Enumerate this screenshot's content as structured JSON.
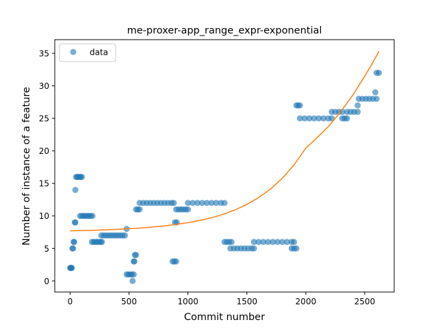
{
  "chart_data": {
    "type": "scatter",
    "title": "me-proxer-app_range_expr-exponential",
    "xlabel": "Commit number",
    "ylabel": "Number of instance of a feature",
    "xlim": [
      -130,
      2750
    ],
    "ylim": [
      -1.7,
      37.1
    ],
    "xticks": [
      0,
      500,
      1000,
      1500,
      2000,
      2500
    ],
    "yticks": [
      0,
      5,
      10,
      15,
      20,
      25,
      30,
      35
    ],
    "grid": false,
    "legend": {
      "placement": "upper-left",
      "entries": [
        "data"
      ]
    },
    "colors": {
      "data": "#1f77b4",
      "fit": "#ff7f0e"
    },
    "series": [
      {
        "name": "data",
        "kind": "scatter",
        "points": [
          [
            0,
            2
          ],
          [
            5,
            2
          ],
          [
            10,
            2
          ],
          [
            15,
            2
          ],
          [
            20,
            5
          ],
          [
            25,
            5
          ],
          [
            30,
            6
          ],
          [
            35,
            6
          ],
          [
            40,
            9
          ],
          [
            45,
            9
          ],
          [
            45,
            14
          ],
          [
            50,
            16
          ],
          [
            60,
            16
          ],
          [
            70,
            16
          ],
          [
            80,
            16
          ],
          [
            90,
            16
          ],
          [
            100,
            16
          ],
          [
            85,
            10
          ],
          [
            100,
            10
          ],
          [
            115,
            10
          ],
          [
            130,
            10
          ],
          [
            145,
            10
          ],
          [
            160,
            10
          ],
          [
            175,
            10
          ],
          [
            190,
            10
          ],
          [
            185,
            6
          ],
          [
            200,
            6
          ],
          [
            215,
            6
          ],
          [
            230,
            6
          ],
          [
            245,
            6
          ],
          [
            260,
            6
          ],
          [
            270,
            6
          ],
          [
            265,
            7
          ],
          [
            285,
            7
          ],
          [
            305,
            7
          ],
          [
            325,
            7
          ],
          [
            345,
            7
          ],
          [
            365,
            7
          ],
          [
            385,
            7
          ],
          [
            405,
            7
          ],
          [
            425,
            7
          ],
          [
            445,
            7
          ],
          [
            465,
            7
          ],
          [
            480,
            8
          ],
          [
            480,
            1
          ],
          [
            495,
            1
          ],
          [
            510,
            1
          ],
          [
            525,
            1
          ],
          [
            540,
            1
          ],
          [
            530,
            0
          ],
          [
            540,
            3
          ],
          [
            545,
            3
          ],
          [
            550,
            4
          ],
          [
            560,
            4
          ],
          [
            560,
            11
          ],
          [
            575,
            11
          ],
          [
            590,
            11
          ],
          [
            590,
            12
          ],
          [
            620,
            12
          ],
          [
            650,
            12
          ],
          [
            680,
            12
          ],
          [
            710,
            12
          ],
          [
            740,
            12
          ],
          [
            770,
            12
          ],
          [
            800,
            12
          ],
          [
            830,
            12
          ],
          [
            860,
            12
          ],
          [
            880,
            12
          ],
          [
            870,
            3
          ],
          [
            885,
            3
          ],
          [
            900,
            3
          ],
          [
            890,
            9
          ],
          [
            905,
            9
          ],
          [
            900,
            11
          ],
          [
            920,
            11
          ],
          [
            940,
            11
          ],
          [
            960,
            11
          ],
          [
            980,
            11
          ],
          [
            1000,
            11
          ],
          [
            1000,
            12
          ],
          [
            1040,
            12
          ],
          [
            1080,
            12
          ],
          [
            1120,
            12
          ],
          [
            1160,
            12
          ],
          [
            1200,
            12
          ],
          [
            1240,
            12
          ],
          [
            1280,
            12
          ],
          [
            1310,
            12
          ],
          [
            1310,
            6
          ],
          [
            1330,
            6
          ],
          [
            1350,
            6
          ],
          [
            1370,
            6
          ],
          [
            1360,
            5
          ],
          [
            1390,
            5
          ],
          [
            1420,
            5
          ],
          [
            1450,
            5
          ],
          [
            1480,
            5
          ],
          [
            1510,
            5
          ],
          [
            1540,
            5
          ],
          [
            1560,
            5
          ],
          [
            1560,
            6
          ],
          [
            1600,
            6
          ],
          [
            1640,
            6
          ],
          [
            1680,
            6
          ],
          [
            1720,
            6
          ],
          [
            1760,
            6
          ],
          [
            1800,
            6
          ],
          [
            1840,
            6
          ],
          [
            1880,
            6
          ],
          [
            1900,
            6
          ],
          [
            1880,
            5
          ],
          [
            1900,
            5
          ],
          [
            1920,
            5
          ],
          [
            1920,
            27
          ],
          [
            1935,
            27
          ],
          [
            1950,
            27
          ],
          [
            1950,
            25
          ],
          [
            1990,
            25
          ],
          [
            2030,
            25
          ],
          [
            2070,
            25
          ],
          [
            2110,
            25
          ],
          [
            2150,
            25
          ],
          [
            2190,
            25
          ],
          [
            2220,
            25
          ],
          [
            2220,
            26
          ],
          [
            2250,
            26
          ],
          [
            2280,
            26
          ],
          [
            2310,
            26
          ],
          [
            2310,
            25
          ],
          [
            2330,
            25
          ],
          [
            2350,
            25
          ],
          [
            2350,
            26
          ],
          [
            2380,
            26
          ],
          [
            2410,
            26
          ],
          [
            2440,
            26
          ],
          [
            2440,
            27
          ],
          [
            2450,
            28
          ],
          [
            2480,
            28
          ],
          [
            2510,
            28
          ],
          [
            2540,
            28
          ],
          [
            2570,
            28
          ],
          [
            2600,
            28
          ],
          [
            2590,
            29
          ],
          [
            2600,
            32
          ],
          [
            2620,
            32
          ]
        ]
      },
      {
        "name": "",
        "kind": "line",
        "x": [
          0,
          200,
          400,
          600,
          800,
          1000,
          1100,
          1200,
          1300,
          1400,
          1500,
          1600,
          1700,
          1800,
          1900,
          2000,
          2100,
          2200,
          2300,
          2400,
          2500,
          2560,
          2620
        ],
        "y": [
          7.7,
          7.79,
          7.93,
          8.14,
          8.46,
          8.96,
          9.3,
          9.73,
          10.26,
          10.93,
          11.77,
          12.82,
          14.13,
          15.78,
          17.84,
          20.42,
          22.1,
          23.9,
          26.1,
          28.6,
          31.5,
          33.3,
          35.3
        ]
      }
    ]
  }
}
